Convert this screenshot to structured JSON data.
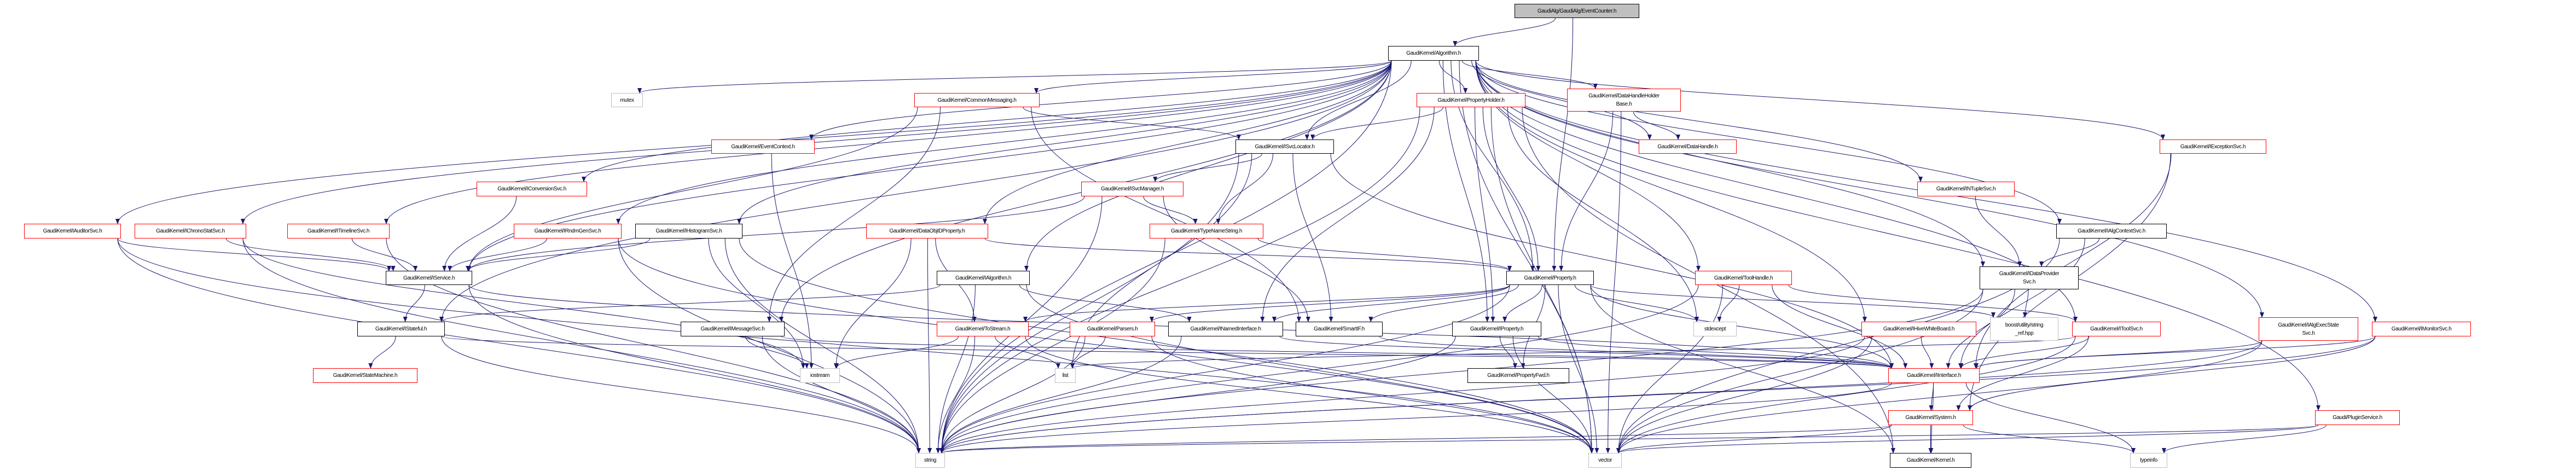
{
  "colors": {
    "edge": "#191970",
    "documented_border": "#000000",
    "truncated_border": "#ff0000",
    "external_border": "#bfbfbf",
    "root_fill": "#bfbfbf"
  },
  "nodes": [
    {
      "id": "eventcounter",
      "label": "GaudiAlg/GaudiAlg/EventCounter.h",
      "style": "root"
    },
    {
      "id": "algorithm",
      "label": "GaudiKernel/Algorithm.h",
      "style": "doc"
    },
    {
      "id": "mutex",
      "label": "mutex",
      "style": "ext"
    },
    {
      "id": "commonmessaging",
      "label": "GaudiKernel/CommonMessaging.h",
      "style": "trunc"
    },
    {
      "id": "propertyholder",
      "label": "GaudiKernel/PropertyHolder.h",
      "style": "trunc"
    },
    {
      "id": "datahandleholderbase",
      "label": "GaudiKernel/DataHandleHolder\nBase.h",
      "style": "trunc"
    },
    {
      "id": "eventcontext",
      "label": "GaudiKernel/EventContext.h",
      "style": "trunc"
    },
    {
      "id": "isvclocator",
      "label": "GaudiKernel/ISvcLocator.h",
      "style": "doc"
    },
    {
      "id": "datahandle",
      "label": "GaudiKernel/DataHandle.h",
      "style": "trunc"
    },
    {
      "id": "iexceptionsvc",
      "label": "GaudiKernel/IExceptionSvc.h",
      "style": "trunc"
    },
    {
      "id": "iconversionsvc",
      "label": "GaudiKernel/IConversionSvc.h",
      "style": "trunc"
    },
    {
      "id": "isvcmanager",
      "label": "GaudiKernel/ISvcManager.h",
      "style": "trunc"
    },
    {
      "id": "intuplesvc",
      "label": "GaudiKernel/INTupleSvc.h",
      "style": "trunc"
    },
    {
      "id": "iauditorsvc",
      "label": "GaudiKernel/IAuditorSvc.h",
      "style": "trunc"
    },
    {
      "id": "ichronostatsvc",
      "label": "GaudiKernel/IChronoStatSvc.h",
      "style": "trunc"
    },
    {
      "id": "itimelinesvc",
      "label": "GaudiKernel/ITimelineSvc.h",
      "style": "trunc"
    },
    {
      "id": "irndmgensvc",
      "label": "GaudiKernel/IRndmGenSvc.h",
      "style": "trunc"
    },
    {
      "id": "ihistogramsvc",
      "label": "GaudiKernel/IHistogramSvc.h",
      "style": "doc"
    },
    {
      "id": "dataobjidproperty",
      "label": "GaudiKernel/DataObjIDProperty.h",
      "style": "trunc"
    },
    {
      "id": "typenamestring",
      "label": "GaudiKernel/TypeNameString.h",
      "style": "trunc"
    },
    {
      "id": "ialgcontextsvc",
      "label": "GaudiKernel/IAlgContextSvc.h",
      "style": "doc"
    },
    {
      "id": "iservice",
      "label": "GaudiKernel/IService.h",
      "style": "doc"
    },
    {
      "id": "ialgorithm",
      "label": "GaudiKernel/IAlgorithm.h",
      "style": "doc"
    },
    {
      "id": "property",
      "label": "GaudiKernel/Property.h",
      "style": "doc"
    },
    {
      "id": "toolhandle",
      "label": "GaudiKernel/ToolHandle.h",
      "style": "trunc"
    },
    {
      "id": "idataprovidersvc",
      "label": "GaudiKernel/IDataProvider\nSvc.h",
      "style": "doc"
    },
    {
      "id": "istateful",
      "label": "GaudiKernel/IStateful.h",
      "style": "doc"
    },
    {
      "id": "imessagesvc",
      "label": "GaudiKernel/IMessageSvc.h",
      "style": "doc"
    },
    {
      "id": "tostream",
      "label": "GaudiKernel/ToStream.h",
      "style": "trunc"
    },
    {
      "id": "parsers",
      "label": "GaudiKernel/Parsers.h",
      "style": "trunc"
    },
    {
      "id": "inamedinterface",
      "label": "GaudiKernel/INamedInterface.h",
      "style": "doc"
    },
    {
      "id": "smartif",
      "label": "GaudiKernel/SmartIF.h",
      "style": "doc"
    },
    {
      "id": "iproperty",
      "label": "GaudiKernel/IProperty.h",
      "style": "doc"
    },
    {
      "id": "stdexcept",
      "label": "stdexcept",
      "style": "ext"
    },
    {
      "id": "ihivewhiteboard",
      "label": "GaudiKernel/IHiveWhiteBoard.h",
      "style": "trunc"
    },
    {
      "id": "stringref",
      "label": "boost/utility/string\n_ref.hpp",
      "style": "ext"
    },
    {
      "id": "itoolsvc",
      "label": "GaudiKernel/IToolSvc.h",
      "style": "trunc"
    },
    {
      "id": "ialgexecstatesvc",
      "label": "GaudiKernel/IAlgExecState\nSvc.h",
      "style": "trunc"
    },
    {
      "id": "imonitorsvc",
      "label": "GaudiKernel/IMonitorSvc.h",
      "style": "trunc"
    },
    {
      "id": "statemachine",
      "label": "GaudiKernel/StateMachine.h",
      "style": "trunc"
    },
    {
      "id": "iostream",
      "label": "iostream",
      "style": "ext"
    },
    {
      "id": "list",
      "label": "list",
      "style": "ext"
    },
    {
      "id": "propertyfwd",
      "label": "GaudiKernel/PropertyFwd.h",
      "style": "doc"
    },
    {
      "id": "iinterface",
      "label": "GaudiKernel/IInterface.h",
      "style": "trunc"
    },
    {
      "id": "system",
      "label": "GaudiKernel/System.h",
      "style": "trunc"
    },
    {
      "id": "pluginservice",
      "label": "Gaudi/PluginService.h",
      "style": "trunc"
    },
    {
      "id": "string",
      "label": "string",
      "style": "ext"
    },
    {
      "id": "vector",
      "label": "vector",
      "style": "ext"
    },
    {
      "id": "kernel",
      "label": "GaudiKernel/Kernel.h",
      "style": "doc"
    },
    {
      "id": "typeinfo",
      "label": "typeinfo",
      "style": "ext"
    }
  ],
  "edges": [
    [
      "eventcounter",
      "algorithm"
    ],
    [
      "eventcounter",
      "property"
    ],
    [
      "algorithm",
      "mutex"
    ],
    [
      "algorithm",
      "commonmessaging"
    ],
    [
      "algorithm",
      "propertyholder"
    ],
    [
      "algorithm",
      "datahandleholderbase"
    ],
    [
      "algorithm",
      "eventcontext"
    ],
    [
      "algorithm",
      "isvclocator"
    ],
    [
      "algorithm",
      "datahandle"
    ],
    [
      "algorithm",
      "iexceptionsvc"
    ],
    [
      "algorithm",
      "iconversionsvc"
    ],
    [
      "algorithm",
      "intuplesvc"
    ],
    [
      "algorithm",
      "iauditorsvc"
    ],
    [
      "algorithm",
      "ichronostatsvc"
    ],
    [
      "algorithm",
      "itimelinesvc"
    ],
    [
      "algorithm",
      "irndmgensvc"
    ],
    [
      "algorithm",
      "ihistogramsvc"
    ],
    [
      "algorithm",
      "dataobjidproperty"
    ],
    [
      "algorithm",
      "ialgcontextsvc"
    ],
    [
      "algorithm",
      "iservice"
    ],
    [
      "algorithm",
      "ialgorithm"
    ],
    [
      "algorithm",
      "property"
    ],
    [
      "algorithm",
      "toolhandle"
    ],
    [
      "algorithm",
      "idataprovidersvc"
    ],
    [
      "algorithm",
      "imessagesvc"
    ],
    [
      "algorithm",
      "iproperty"
    ],
    [
      "algorithm",
      "ihivewhiteboard"
    ],
    [
      "algorithm",
      "itoolsvc"
    ],
    [
      "algorithm",
      "ialgexecstatesvc"
    ],
    [
      "algorithm",
      "imonitorsvc"
    ],
    [
      "algorithm",
      "istateful"
    ],
    [
      "algorithm",
      "pluginservice"
    ],
    [
      "algorithm",
      "string"
    ],
    [
      "algorithm",
      "vector"
    ],
    [
      "commonmessaging",
      "isvclocator"
    ],
    [
      "commonmessaging",
      "imessagesvc"
    ],
    [
      "commonmessaging",
      "smartif"
    ],
    [
      "commonmessaging",
      "iservice"
    ],
    [
      "propertyholder",
      "property"
    ],
    [
      "propertyholder",
      "iproperty"
    ],
    [
      "propertyholder",
      "isvclocator"
    ],
    [
      "propertyholder",
      "stdexcept"
    ],
    [
      "propertyholder",
      "string"
    ],
    [
      "propertyholder",
      "vector"
    ],
    [
      "propertyholder",
      "inamedinterface"
    ],
    [
      "propertyholder",
      "kernel"
    ],
    [
      "datahandleholderbase",
      "datahandle"
    ],
    [
      "datahandleholderbase",
      "property"
    ],
    [
      "datahandleholderbase",
      "vector"
    ],
    [
      "eventcontext",
      "iostream"
    ],
    [
      "isvclocator",
      "isvcmanager"
    ],
    [
      "isvclocator",
      "typenamestring"
    ],
    [
      "isvclocator",
      "smartif"
    ],
    [
      "isvclocator",
      "iinterface"
    ],
    [
      "isvclocator",
      "string"
    ],
    [
      "isvclocator",
      "list"
    ],
    [
      "isvcmanager",
      "typenamestring"
    ],
    [
      "isvcmanager",
      "iservice"
    ],
    [
      "isvcmanager",
      "smartif"
    ],
    [
      "isvcmanager",
      "string"
    ],
    [
      "iconversionsvc",
      "iservice"
    ],
    [
      "intuplesvc",
      "idataprovidersvc"
    ],
    [
      "iauditorsvc",
      "iservice"
    ],
    [
      "iauditorsvc",
      "string"
    ],
    [
      "iauditorsvc",
      "vector"
    ],
    [
      "ichronostatsvc",
      "iservice"
    ],
    [
      "ichronostatsvc",
      "string"
    ],
    [
      "ichronostatsvc",
      "iostream"
    ],
    [
      "itimelinesvc",
      "iservice"
    ],
    [
      "itimelinesvc",
      "string"
    ],
    [
      "irndmgensvc",
      "iservice"
    ],
    [
      "irndmgensvc",
      "vector"
    ],
    [
      "irndmgensvc",
      "string"
    ],
    [
      "ihistogramsvc",
      "iservice"
    ],
    [
      "ihistogramsvc",
      "string"
    ],
    [
      "ihistogramsvc",
      "vector"
    ],
    [
      "ihistogramsvc",
      "iostream"
    ],
    [
      "dataobjidproperty",
      "property"
    ],
    [
      "dataobjidproperty",
      "string"
    ],
    [
      "dataobjidproperty",
      "iostream"
    ],
    [
      "dataobjidproperty",
      "tostream"
    ],
    [
      "typenamestring",
      "property"
    ],
    [
      "typenamestring",
      "string"
    ],
    [
      "ialgcontextsvc",
      "iinterface"
    ],
    [
      "ialgcontextsvc",
      "vector"
    ],
    [
      "ialgcontextsvc",
      "idataprovidersvc"
    ],
    [
      "iservice",
      "istateful"
    ],
    [
      "iservice",
      "string"
    ],
    [
      "iservice",
      "iinterface"
    ],
    [
      "istateful",
      "statemachine"
    ],
    [
      "istateful",
      "iinterface"
    ],
    [
      "istateful",
      "string"
    ],
    [
      "ialgorithm",
      "inamedinterface"
    ],
    [
      "ialgorithm",
      "istateful"
    ],
    [
      "ialgorithm",
      "string"
    ],
    [
      "ialgorithm",
      "vector"
    ],
    [
      "imessagesvc",
      "iostream"
    ],
    [
      "imessagesvc",
      "string"
    ],
    [
      "imessagesvc",
      "iinterface"
    ],
    [
      "tostream",
      "iostream"
    ],
    [
      "tostream",
      "string"
    ],
    [
      "tostream",
      "list"
    ],
    [
      "tostream",
      "vector"
    ],
    [
      "parsers",
      "string"
    ],
    [
      "parsers",
      "list"
    ],
    [
      "parsers",
      "vector"
    ],
    [
      "inamedinterface",
      "iinterface"
    ],
    [
      "inamedinterface",
      "string"
    ],
    [
      "smartif",
      "iinterface"
    ],
    [
      "property",
      "iproperty"
    ],
    [
      "property",
      "propertyfwd"
    ],
    [
      "property",
      "smartif"
    ],
    [
      "property",
      "stdexcept"
    ],
    [
      "property",
      "tostream"
    ],
    [
      "property",
      "parsers"
    ],
    [
      "property",
      "inamedinterface"
    ],
    [
      "property",
      "iinterface"
    ],
    [
      "property",
      "string"
    ],
    [
      "property",
      "vector"
    ],
    [
      "property",
      "kernel"
    ],
    [
      "property",
      "stringref"
    ],
    [
      "iproperty",
      "propertyfwd"
    ],
    [
      "iproperty",
      "iinterface"
    ],
    [
      "iproperty",
      "string"
    ],
    [
      "iproperty",
      "vector"
    ],
    [
      "toolhandle",
      "stdexcept"
    ],
    [
      "toolhandle",
      "itoolsvc"
    ],
    [
      "toolhandle",
      "iinterface"
    ],
    [
      "toolhandle",
      "vector"
    ],
    [
      "toolhandle",
      "string"
    ],
    [
      "ihivewhiteboard",
      "iinterface"
    ],
    [
      "ihivewhiteboard",
      "vector"
    ],
    [
      "ihivewhiteboard",
      "string"
    ],
    [
      "idataprovidersvc",
      "stringref"
    ],
    [
      "idataprovidersvc",
      "iinterface"
    ],
    [
      "idataprovidersvc",
      "string"
    ],
    [
      "idataprovidersvc",
      "vector"
    ],
    [
      "itoolsvc",
      "iinterface"
    ],
    [
      "itoolsvc",
      "system"
    ],
    [
      "itoolsvc",
      "vector"
    ],
    [
      "itoolsvc",
      "list"
    ],
    [
      "ialgexecstatesvc",
      "iinterface"
    ],
    [
      "ialgexecstatesvc",
      "string"
    ],
    [
      "ialgexecstatesvc",
      "vector"
    ],
    [
      "imonitorsvc",
      "iinterface"
    ],
    [
      "imonitorsvc",
      "system"
    ],
    [
      "imonitorsvc",
      "string"
    ],
    [
      "iexceptionsvc",
      "iinterface"
    ],
    [
      "iexceptionsvc",
      "system"
    ],
    [
      "iinterface",
      "system"
    ],
    [
      "iinterface",
      "kernel"
    ],
    [
      "iinterface",
      "typeinfo"
    ],
    [
      "iinterface",
      "string"
    ],
    [
      "system",
      "kernel"
    ],
    [
      "system",
      "typeinfo"
    ],
    [
      "system",
      "string"
    ],
    [
      "system",
      "vector"
    ],
    [
      "pluginservice",
      "typeinfo"
    ],
    [
      "pluginservice",
      "string"
    ],
    [
      "pluginservice",
      "vector"
    ]
  ]
}
